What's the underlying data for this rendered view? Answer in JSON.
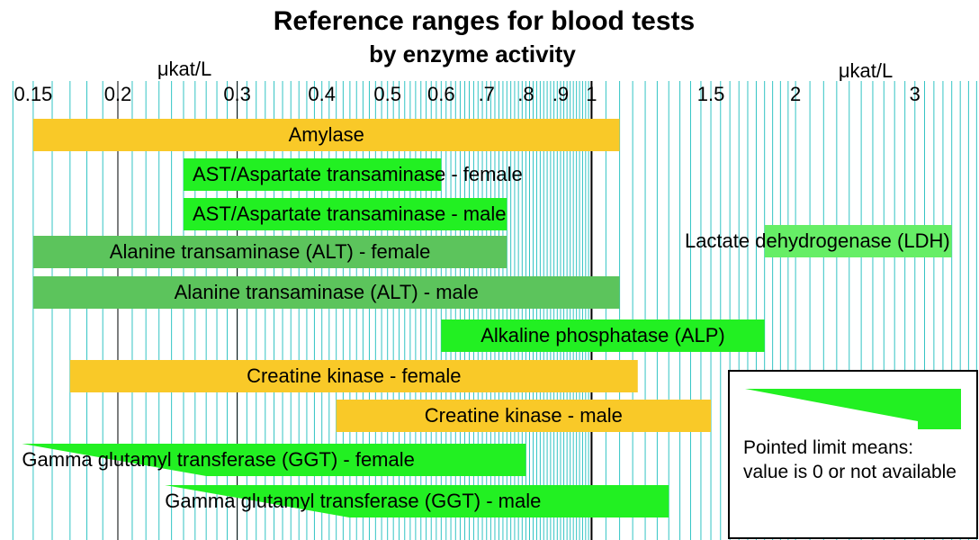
{
  "chart_data": {
    "type": "range-bar",
    "title": "Reference ranges for blood tests",
    "subtitle": "by enzyme activity",
    "x_unit": "μkat/L",
    "log_x": true,
    "xlim": [
      0.134,
      3.73
    ],
    "xticks": [
      0.15,
      0.2,
      0.3,
      0.4,
      0.5,
      0.6,
      {
        "value": 0.7,
        "label": ".7"
      },
      {
        "value": 0.8,
        "label": ".8"
      },
      {
        "value": 0.9,
        "label": ".9"
      },
      1,
      1.5,
      2,
      3
    ],
    "dark_grid": [
      0.2,
      0.3,
      1
    ],
    "minor_grid": [
      0.14,
      0.16,
      0.17,
      0.18,
      0.19,
      0.21,
      0.22,
      0.23,
      0.24,
      0.25,
      0.26,
      0.27,
      0.28,
      0.29,
      0.31,
      0.32,
      0.33,
      0.34,
      0.35,
      0.36,
      0.37,
      0.38,
      0.39,
      0.41,
      0.42,
      0.43,
      0.44,
      0.45,
      0.46,
      0.47,
      0.48,
      0.49,
      0.51,
      0.52,
      0.53,
      0.54,
      0.55,
      0.56,
      0.57,
      0.58,
      0.59,
      0.61,
      0.62,
      0.63,
      0.64,
      0.65,
      0.66,
      0.67,
      0.68,
      0.69,
      0.71,
      0.72,
      0.73,
      0.74,
      0.75,
      0.76,
      0.77,
      0.78,
      0.79,
      0.81,
      0.82,
      0.83,
      0.84,
      0.85,
      0.86,
      0.87,
      0.88,
      0.89,
      0.91,
      0.92,
      0.93,
      0.94,
      0.95,
      0.96,
      0.97,
      0.98,
      0.99,
      1.05,
      1.1,
      1.15,
      1.2,
      1.25,
      1.3,
      1.35,
      1.4,
      1.45,
      1.55,
      1.6,
      1.65,
      1.7,
      1.75,
      1.8,
      1.85,
      1.9,
      1.95,
      2.1,
      2.2,
      2.3,
      2.4,
      2.5,
      2.6,
      2.7,
      2.8,
      2.9,
      3.1,
      3.2,
      3.3,
      3.4,
      3.5,
      3.6,
      3.7
    ],
    "series": [
      {
        "name": "Amylase",
        "color": "#f9c928",
        "values": [
          0.15,
          1.1
        ]
      },
      {
        "name": "AST/Aspartate transaminase - female",
        "color": "#22f022",
        "values": [
          0.25,
          0.6
        ]
      },
      {
        "name": "AST/Aspartate transaminase - male",
        "color": "#22f022",
        "values": [
          0.25,
          0.75
        ]
      },
      {
        "name": "Lactate dehydrogenase (LDH)",
        "color": "#66ee66",
        "values": [
          1.8,
          3.4
        ]
      },
      {
        "name": "Alanine transaminase (ALT) - female",
        "color": "#5cc45c",
        "values": [
          0.15,
          0.75
        ]
      },
      {
        "name": "Alanine transaminase (ALT) - male",
        "color": "#5cc45c",
        "values": [
          0.15,
          1.1
        ]
      },
      {
        "name": "Alkaline phosphatase (ALP)",
        "color": "#22f022",
        "values": [
          0.6,
          1.8
        ]
      },
      {
        "name": "Creatine kinase - female",
        "color": "#f9c928",
        "values": [
          0.17,
          1.17
        ]
      },
      {
        "name": "Creatine kinase - male",
        "color": "#f9c928",
        "values": [
          0.42,
          1.5
        ]
      },
      {
        "name": "Gamma glutamyl transferase (GGT) - female",
        "color": "#22f022",
        "values": [
          null,
          0.8
        ]
      },
      {
        "name": "Gamma glutamyl transferase (GGT) - male",
        "color": "#22f022",
        "values": [
          null,
          1.3
        ]
      }
    ],
    "legend_note": "Pointed limit means: value is 0 or not available"
  }
}
